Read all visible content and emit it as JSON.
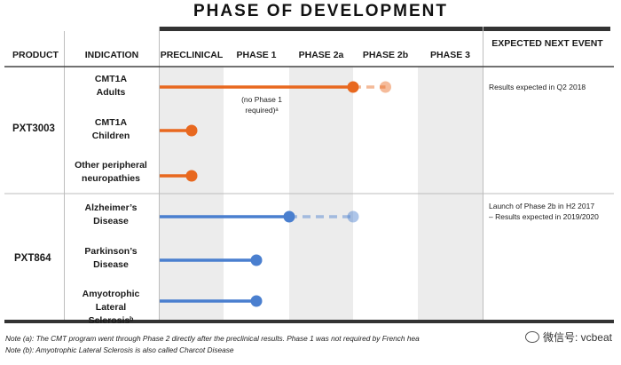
{
  "title": "PHASE OF DEVELOPMENT",
  "columns": {
    "product": "PRODUCT",
    "indication": "INDICATION",
    "preclinical": "PRECLINICAL",
    "phase1": "PHASE 1",
    "phase2a": "PHASE 2a",
    "phase2b": "PHASE 2b",
    "phase3": "PHASE 3",
    "expected": "EXPECTED NEXT EVENT"
  },
  "products": [
    {
      "name": "PXT3003",
      "color": "#e8681f",
      "indications": [
        {
          "label": "CMT1A Adults",
          "progress_phase": 3,
          "target_phase": 3.5,
          "annotation": "(no Phase 1 required)ᵃ"
        },
        {
          "label": "CMT1A Children",
          "progress_phase": 0.5
        },
        {
          "label": "Other peripheral neuropathies",
          "progress_phase": 0.5
        }
      ],
      "event": "Results expected in Q2 2018"
    },
    {
      "name": "PXT864",
      "color": "#4a7fcf",
      "indications": [
        {
          "label": "Alzheimer’s Disease",
          "progress_phase": 2,
          "target_phase": 3
        },
        {
          "label": "Parkinson’s Disease",
          "progress_phase": 1.5
        },
        {
          "label": "Amyotrophic Lateral Sclerosisᵇ",
          "progress_phase": 1.5
        }
      ],
      "event": "Launch of Phase 2b in H2 2017 – Results expected in 2019/2020"
    }
  ],
  "notes": [
    "Note (a): The CMT program went through Phase 2 directly after the preclinical results.  Phase 1 was not required by French hea",
    "Note (b): Amyotrophic Lateral Sclerosis is also called Charcot Disease"
  ],
  "watermark": "微信号: vcbeat"
}
